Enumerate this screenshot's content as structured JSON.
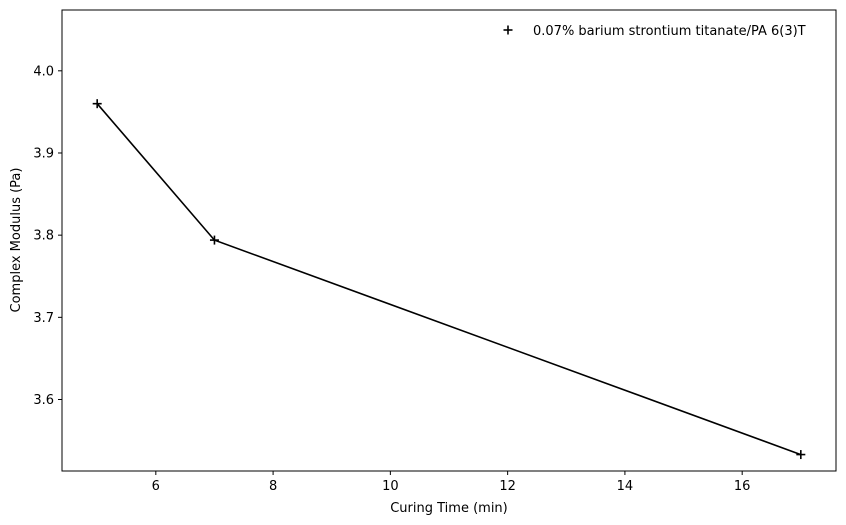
{
  "chart_data": {
    "type": "line",
    "title": "",
    "xlabel": "Curing Time (min)",
    "ylabel": "Complex Modulus (Pa)",
    "xlim": [
      4.4,
      17.6
    ],
    "ylim": [
      3.513,
      4.074
    ],
    "xticks": [
      6,
      8,
      10,
      12,
      14,
      16
    ],
    "yticks": [
      3.6,
      3.7,
      3.8,
      3.9,
      4.0
    ],
    "xtick_labels": [
      "6",
      "8",
      "10",
      "12",
      "14",
      "16"
    ],
    "ytick_labels": [
      "3.6",
      "3.7",
      "3.8",
      "3.9",
      "4.0"
    ],
    "grid": false,
    "legend_position": "top-right",
    "series": [
      {
        "name": "0.07% barium strontium titanate/PA 6(3)T",
        "marker": "plus",
        "color": "#000000",
        "x": [
          5,
          7,
          17
        ],
        "y": [
          3.96,
          3.794,
          3.533
        ]
      }
    ]
  }
}
